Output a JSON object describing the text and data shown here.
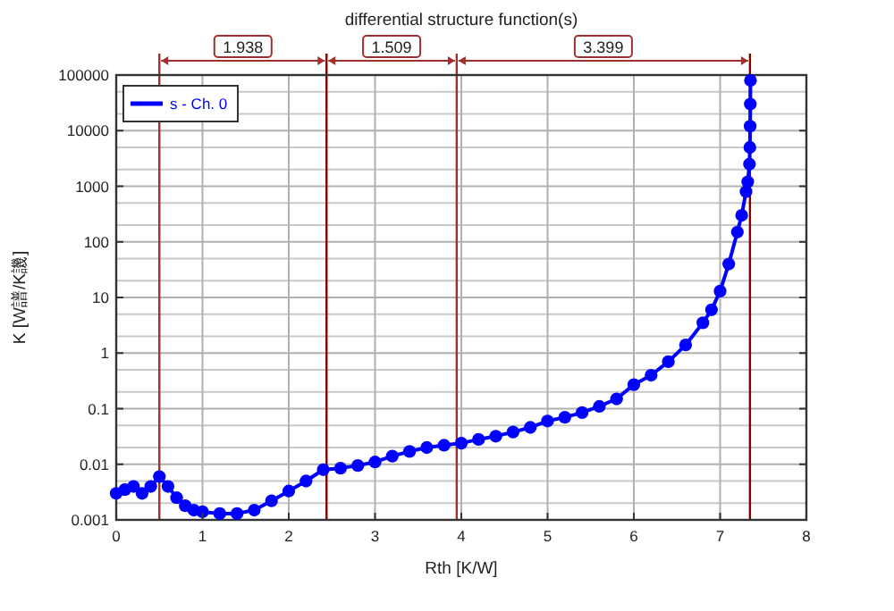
{
  "chart_data": {
    "type": "line",
    "title": "differential structure function(s)",
    "xlabel": "Rth  [K/W]",
    "ylabel": "K  [W譜/K譏]",
    "log": "y",
    "grid": true,
    "legend": "top left",
    "marker": "circle",
    "line_style": "solid",
    "xlim": [
      0,
      8
    ],
    "xticks": [
      0,
      1,
      2,
      3,
      4,
      5,
      6,
      7,
      8
    ],
    "ylim": [
      0.001,
      100000
    ],
    "yticks": [
      0.001,
      0.01,
      0.1,
      1,
      10,
      100,
      1000,
      10000,
      100000
    ],
    "series": [
      {
        "name": "s - Ch. 0",
        "color": "#0000ff",
        "x": [
          0,
          0.1,
          0.2,
          0.3,
          0.4,
          0.5,
          0.6,
          0.7,
          0.8,
          0.9,
          1.0,
          1.2,
          1.4,
          1.6,
          1.8,
          2.0,
          2.2,
          2.4,
          2.6,
          2.8,
          3.0,
          3.2,
          3.4,
          3.6,
          3.8,
          4.0,
          4.2,
          4.4,
          4.6,
          4.8,
          5.0,
          5.2,
          5.4,
          5.6,
          5.8,
          6.0,
          6.2,
          6.4,
          6.6,
          6.8,
          6.9,
          7.0,
          7.1,
          7.2,
          7.25,
          7.3,
          7.32,
          7.34,
          7.345,
          7.348,
          7.35,
          7.352
        ],
        "values": [
          0.003,
          0.0035,
          0.004,
          0.003,
          0.004,
          0.006,
          0.004,
          0.0025,
          0.0018,
          0.0015,
          0.0014,
          0.0013,
          0.0013,
          0.0015,
          0.0022,
          0.0033,
          0.005,
          0.008,
          0.0085,
          0.0095,
          0.011,
          0.014,
          0.017,
          0.02,
          0.022,
          0.024,
          0.028,
          0.032,
          0.038,
          0.046,
          0.06,
          0.07,
          0.085,
          0.11,
          0.15,
          0.27,
          0.4,
          0.7,
          1.4,
          3.5,
          6,
          13,
          40,
          150,
          300,
          800,
          1200,
          2500,
          5000,
          12000,
          30000,
          80000
        ]
      }
    ],
    "ref_lines": [
      {
        "axis": "x",
        "value": 0.5,
        "color": "#a03030"
      },
      {
        "axis": "x",
        "value": 2.438,
        "color": "#800000"
      },
      {
        "axis": "x",
        "value": 3.947,
        "color": "#a03030"
      },
      {
        "axis": "x",
        "value": 7.346,
        "color": "#800000"
      }
    ],
    "annotations": [
      "1.938",
      "1.509",
      "3.399"
    ]
  }
}
